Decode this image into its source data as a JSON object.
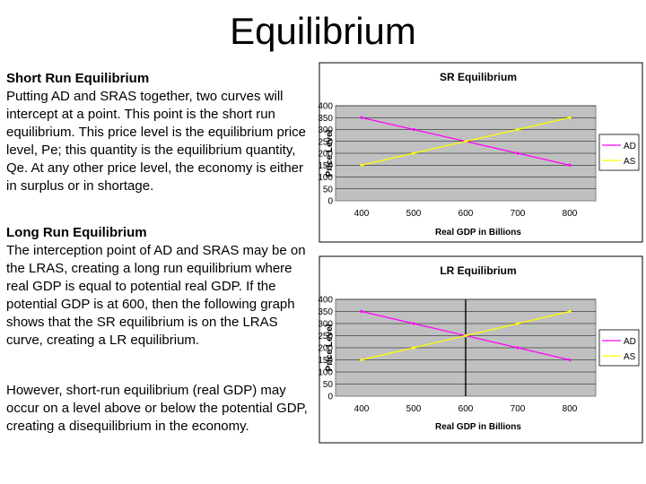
{
  "page": {
    "title": "Equilibrium",
    "sections": [
      {
        "heading": "Short Run Equilibrium",
        "body": "Putting AD and SRAS together, two curves will intercept at a point. This point is the short run equilibrium. This price level is the equilibrium price level, Pe; this quantity is the equilibrium quantity, Qe. At any other price level, the economy is either in surplus or in shortage."
      },
      {
        "heading": "Long Run Equilibrium",
        "body": "The interception point of AD and SRAS may be on the LRAS, creating a long run equilibrium where real GDP is equal to potential real GDP. If the potential GDP is at 600, then the following graph shows that the SR equilibrium is on the LRAS curve, creating a LR equilibrium."
      },
      {
        "heading": "",
        "body": "However, short-run equilibrium (real GDP) may occur on a level above or below the potential GDP, creating a disequilibrium in the economy."
      }
    ]
  },
  "colors": {
    "plot_area": "#c0c0c0",
    "ad_line": "#ff00ff",
    "as_line": "#ffff00",
    "lras_line": "#000000"
  },
  "chart_data": [
    {
      "type": "line",
      "title": "SR Equilibrium",
      "xlabel": "Real GDP in Billions",
      "ylabel": "Price Level",
      "x": [
        400,
        500,
        600,
        700,
        800
      ],
      "series": [
        {
          "name": "AD",
          "values": [
            350,
            300,
            250,
            200,
            150
          ]
        },
        {
          "name": "AS",
          "values": [
            150,
            200,
            250,
            300,
            350
          ]
        }
      ],
      "yticks": [
        0,
        50,
        100,
        150,
        200,
        250,
        300,
        350,
        400
      ],
      "ylim": [
        0,
        400
      ],
      "grid": true,
      "legend": "right"
    },
    {
      "type": "line",
      "title": "LR Equilibrium",
      "xlabel": "Real GDP in Billions",
      "ylabel": "Price Level",
      "x": [
        400,
        500,
        600,
        700,
        800
      ],
      "series": [
        {
          "name": "AD",
          "values": [
            350,
            300,
            250,
            200,
            150
          ]
        },
        {
          "name": "AS",
          "values": [
            150,
            200,
            250,
            300,
            350
          ]
        }
      ],
      "vertical_line_x": 600,
      "yticks": [
        0,
        50,
        100,
        150,
        200,
        250,
        300,
        350,
        400
      ],
      "ylim": [
        0,
        400
      ],
      "grid": true,
      "legend": "right"
    }
  ]
}
